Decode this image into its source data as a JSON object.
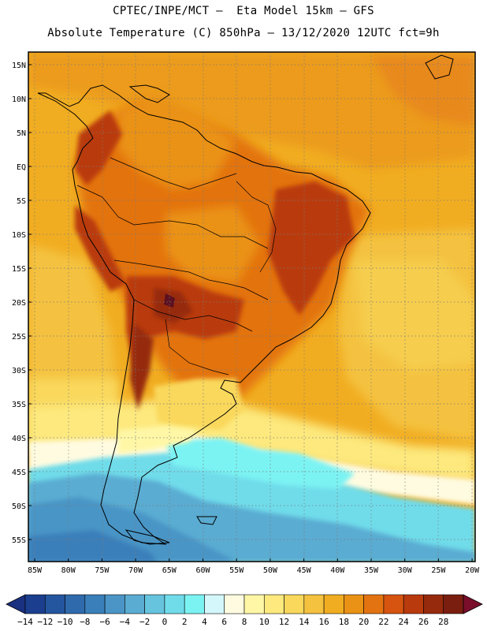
{
  "header": {
    "line1": "CPTEC/INPE/MCT –  Eta Model 15km – GFS",
    "line2": "Absolute Temperature (C) 850hPa – 13/12/2020 12UTC fct=9h"
  },
  "axes": {
    "lat_labels": [
      "15N",
      "10N",
      "5N",
      "EQ",
      "5S",
      "10S",
      "15S",
      "20S",
      "25S",
      "30S",
      "35S",
      "40S",
      "45S",
      "50S",
      "55S"
    ],
    "lon_labels": [
      "85W",
      "80W",
      "75W",
      "70W",
      "65W",
      "60W",
      "55W",
      "50W",
      "45W",
      "40W",
      "35W",
      "30W",
      "25W",
      "20W"
    ]
  },
  "colorbar": {
    "labels": [
      "-14",
      "-12",
      "-10",
      "-8",
      "-6",
      "-4",
      "-2",
      "0",
      "2",
      "4",
      "6",
      "8",
      "10",
      "12",
      "14",
      "16",
      "18",
      "20",
      "22",
      "24",
      "26",
      "28"
    ],
    "colors": [
      "#1b3f8e",
      "#24569f",
      "#2f6aad",
      "#3a7fba",
      "#4a95c6",
      "#5aacd2",
      "#66c4de",
      "#70dcea",
      "#7cf3f3",
      "#d4f7fb",
      "#fffbe0",
      "#fff7a6",
      "#fde97e",
      "#f9d85c",
      "#f4c23f",
      "#f1ad21",
      "#ea9215",
      "#e37311",
      "#d6540f",
      "#b93a0d",
      "#962a0c",
      "#7a1e10"
    ],
    "under_color": "#1a3080",
    "over_color": "#7a0e2a"
  }
}
